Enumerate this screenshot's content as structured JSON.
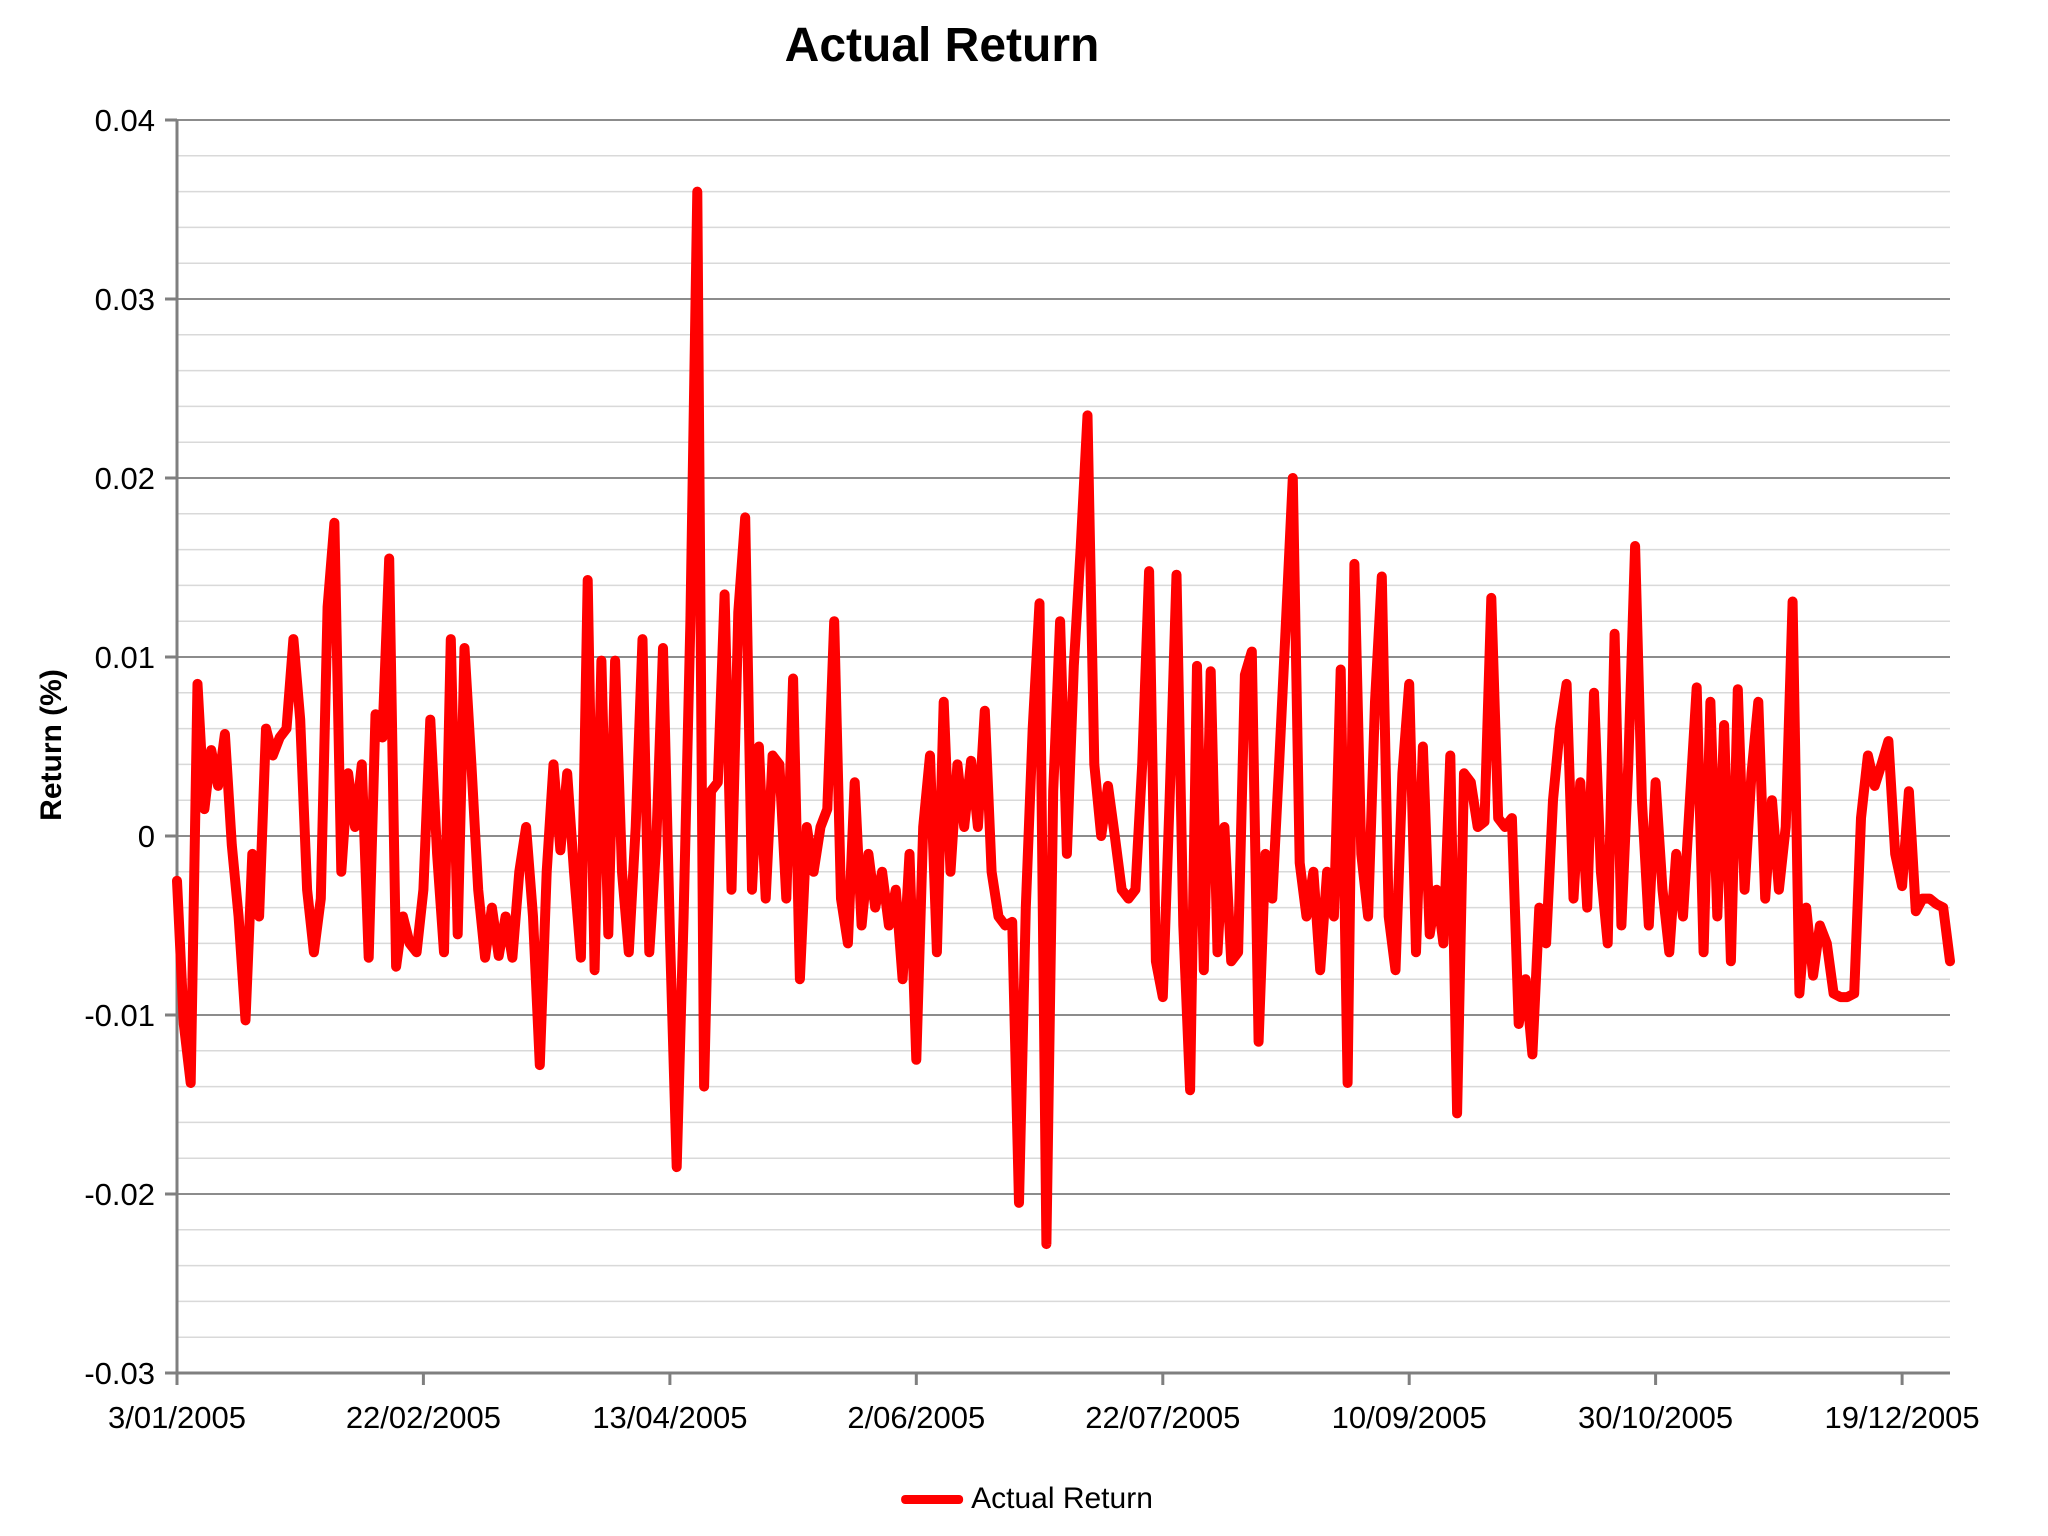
{
  "title": "Actual Return",
  "y_axis": {
    "title": "Return (%)",
    "ticks": [
      {
        "label": "0.04",
        "value": 0.04
      },
      {
        "label": "0.03",
        "value": 0.03
      },
      {
        "label": "0.02",
        "value": 0.02
      },
      {
        "label": "0.01",
        "value": 0.01
      },
      {
        "label": "0",
        "value": 0
      },
      {
        "label": "-0.01",
        "value": -0.01
      },
      {
        "label": "-0.02",
        "value": -0.02
      },
      {
        "label": "-0.03",
        "value": -0.03
      }
    ]
  },
  "x_axis": {
    "ticks": [
      {
        "label": "3/01/2005",
        "index": 0
      },
      {
        "label": "22/02/2005",
        "index": 36
      },
      {
        "label": "13/04/2005",
        "index": 72
      },
      {
        "label": "2/06/2005",
        "index": 108
      },
      {
        "label": "22/07/2005",
        "index": 144
      },
      {
        "label": "10/09/2005",
        "index": 180
      },
      {
        "label": "30/10/2005",
        "index": 216
      },
      {
        "label": "19/12/2005",
        "index": 252
      }
    ]
  },
  "legend": {
    "label": "Actual Return",
    "position": "bottom-center"
  },
  "colors": {
    "series": "#ff0000",
    "minor_grid": "#d9d9d9",
    "major_grid": "#8c8c8c",
    "axis": "#7f7f7f",
    "text": "#000000",
    "background": "#ffffff"
  },
  "chart_data": {
    "type": "line",
    "title": "Actual Return",
    "xlabel": "",
    "ylabel": "Return (%)",
    "ylim": [
      -0.03,
      0.04
    ],
    "grid": {
      "orientation": "horizontal",
      "minor_step": 0.002,
      "major_step": 0.01
    },
    "legend_position": "bottom",
    "x_description": "daily trading days of 2005, ticks every 36 days",
    "x_tick_labels": [
      "3/01/2005",
      "22/02/2005",
      "13/04/2005",
      "2/06/2005",
      "22/07/2005",
      "10/09/2005",
      "30/10/2005",
      "19/12/2005"
    ],
    "x_tick_indices": [
      0,
      36,
      72,
      108,
      144,
      180,
      216,
      252
    ],
    "series": [
      {
        "name": "Actual Return",
        "color": "#ff0000",
        "values": [
          -0.0025,
          -0.0105,
          -0.0138,
          0.0085,
          0.0015,
          0.0048,
          0.0028,
          0.0057,
          -0.0005,
          -0.0045,
          -0.0103,
          -0.001,
          -0.0045,
          0.006,
          0.0045,
          0.0055,
          0.006,
          0.011,
          0.0065,
          -0.003,
          -0.0065,
          -0.0035,
          0.0128,
          0.0175,
          -0.002,
          0.0035,
          0.0005,
          0.004,
          -0.0068,
          0.0068,
          0.0055,
          0.0155,
          -0.0073,
          -0.0045,
          -0.006,
          -0.0065,
          -0.003,
          0.0065,
          -0.001,
          -0.0065,
          0.011,
          -0.0055,
          0.0105,
          0.004,
          -0.003,
          -0.0068,
          -0.004,
          -0.0067,
          -0.0045,
          -0.0068,
          -0.002,
          0.0005,
          -0.0045,
          -0.0128,
          -0.002,
          0.004,
          -0.0008,
          0.0035,
          -0.002,
          -0.0068,
          0.0143,
          -0.0075,
          0.0098,
          -0.0055,
          0.0098,
          -0.002,
          -0.0065,
          0.0005,
          0.011,
          -0.0065,
          -0.0005,
          0.0105,
          -0.0055,
          -0.0185,
          -0.0045,
          0.012,
          0.036,
          -0.014,
          0.0025,
          0.003,
          0.0135,
          -0.003,
          0.0125,
          0.0178,
          -0.003,
          0.005,
          -0.0035,
          0.0045,
          0.004,
          -0.0035,
          0.0088,
          -0.008,
          0.0005,
          -0.002,
          0.0005,
          0.0015,
          0.012,
          -0.0035,
          -0.006,
          0.003,
          -0.005,
          -0.001,
          -0.004,
          -0.002,
          -0.005,
          -0.003,
          -0.008,
          -0.001,
          -0.0125,
          0.0005,
          0.0045,
          -0.0065,
          0.0075,
          -0.002,
          0.004,
          0.0005,
          0.0042,
          0.0005,
          0.007,
          -0.002,
          -0.0045,
          -0.005,
          -0.0048,
          -0.0205,
          -0.004,
          0.006,
          0.013,
          -0.0228,
          0.0025,
          0.012,
          -0.001,
          0.0095,
          0.016,
          0.0235,
          0.004,
          0,
          0.0028,
          0,
          -0.003,
          -0.0035,
          -0.003,
          0.004,
          0.0148,
          -0.007,
          -0.009,
          0.002,
          0.0146,
          -0.005,
          -0.0142,
          0.0095,
          -0.0075,
          0.0092,
          -0.0065,
          0.0005,
          -0.007,
          -0.0065,
          0.009,
          0.0103,
          -0.0115,
          -0.001,
          -0.0035,
          0.004,
          0.012,
          0.02,
          -0.0015,
          -0.0045,
          -0.002,
          -0.0075,
          -0.002,
          -0.0045,
          0.0093,
          -0.0138,
          0.0152,
          -0.001,
          -0.0045,
          0.0075,
          0.0145,
          -0.0045,
          -0.0075,
          0.0035,
          0.0085,
          -0.0065,
          0.005,
          -0.0055,
          -0.003,
          -0.006,
          0.0045,
          -0.0155,
          0.0035,
          0.003,
          0.0005,
          0.0008,
          0.0133,
          0.001,
          0.0005,
          0.001,
          -0.0105,
          -0.008,
          -0.0122,
          -0.004,
          -0.006,
          0.002,
          0.006,
          0.0085,
          -0.0035,
          0.003,
          -0.004,
          0.008,
          -0.002,
          -0.006,
          0.0113,
          -0.005,
          0.004,
          0.0162,
          0.002,
          -0.005,
          0.003,
          -0.003,
          -0.0065,
          -0.001,
          -0.0045,
          0.002,
          0.0083,
          -0.0065,
          0.0075,
          -0.0045,
          0.0062,
          -0.007,
          0.0082,
          -0.003,
          0.0035,
          0.0075,
          -0.0035,
          0.002,
          -0.003,
          0.0005,
          0.0131,
          -0.0088,
          -0.004,
          -0.0078,
          -0.005,
          -0.006,
          -0.0088,
          -0.009,
          -0.009,
          -0.0088,
          0.001,
          0.0045,
          0.0028,
          0.004,
          0.0053,
          -0.001,
          -0.0028,
          0.0025,
          -0.0042,
          -0.0035,
          -0.0035,
          -0.0038,
          -0.004,
          -0.007
        ]
      }
    ]
  }
}
